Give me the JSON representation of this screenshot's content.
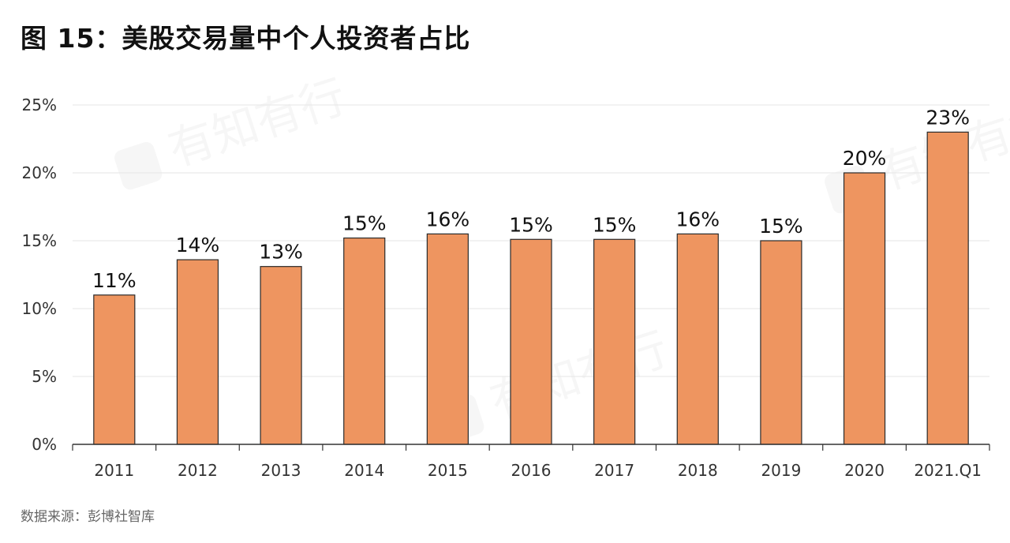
{
  "title": "图 15：美股交易量中个人投资者占比",
  "source": "数据来源：彭博社智库",
  "watermark": "有知有行",
  "colors": {
    "bar": "#ee9560",
    "bar_stroke": "#2a2a2a",
    "grid": "#e6e6e6",
    "axis": "#333333"
  },
  "chart_data": {
    "type": "bar",
    "categories": [
      "2011",
      "2012",
      "2013",
      "2014",
      "2015",
      "2016",
      "2017",
      "2018",
      "2019",
      "2020",
      "2021.Q1"
    ],
    "values": [
      11,
      13.6,
      13.1,
      15.2,
      15.5,
      15.1,
      15.1,
      15.5,
      15.0,
      20.0,
      23.0
    ],
    "data_labels": [
      "11%",
      "14%",
      "13%",
      "15%",
      "16%",
      "15%",
      "15%",
      "16%",
      "15%",
      "20%",
      "23%"
    ],
    "y_ticks": [
      0,
      5,
      10,
      15,
      20,
      25
    ],
    "y_tick_labels": [
      "0%",
      "5%",
      "10%",
      "15%",
      "20%",
      "25%"
    ],
    "ylim": [
      0,
      25
    ],
    "grid": true,
    "legend": "none"
  }
}
